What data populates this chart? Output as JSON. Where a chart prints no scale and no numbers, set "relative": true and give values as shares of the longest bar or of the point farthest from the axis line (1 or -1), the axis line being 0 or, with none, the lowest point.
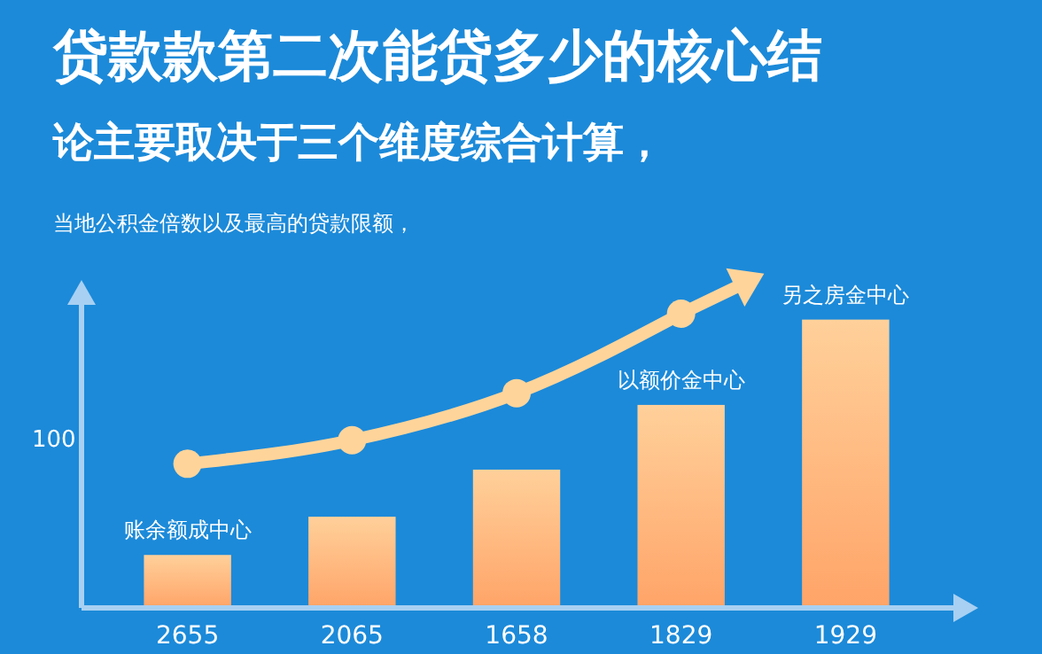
{
  "chart_data": {
    "type": "bar",
    "relative": true,
    "title": "贷款款第二次能贷多少的核心结论主要取决于三个维度综合计算，",
    "subtitle": "当地公积金倍数以及最高的贷款限额，",
    "categories": [
      "2655",
      "2065",
      "1658",
      "1829",
      "1929"
    ],
    "series": [
      {
        "color": "#ffa468",
        "values": [
          0.18,
          0.31,
          0.47,
          0.69,
          0.98
        ]
      },
      {
        "type": "line",
        "color": "#ffd49a",
        "marker": "circle",
        "values": [
          0.49,
          0.57,
          0.73,
          1.0,
          null
        ]
      }
    ],
    "annotations": [
      "100",
      {
        "text": "账余额成中心",
        "x": "2655",
        "y": 0.18
      },
      {
        "text": "以额价金中心",
        "x": "1829",
        "y": 0.69
      },
      {
        "text": "另之房金中心",
        "x": "1929",
        "y": 0.98
      }
    ]
  }
}
